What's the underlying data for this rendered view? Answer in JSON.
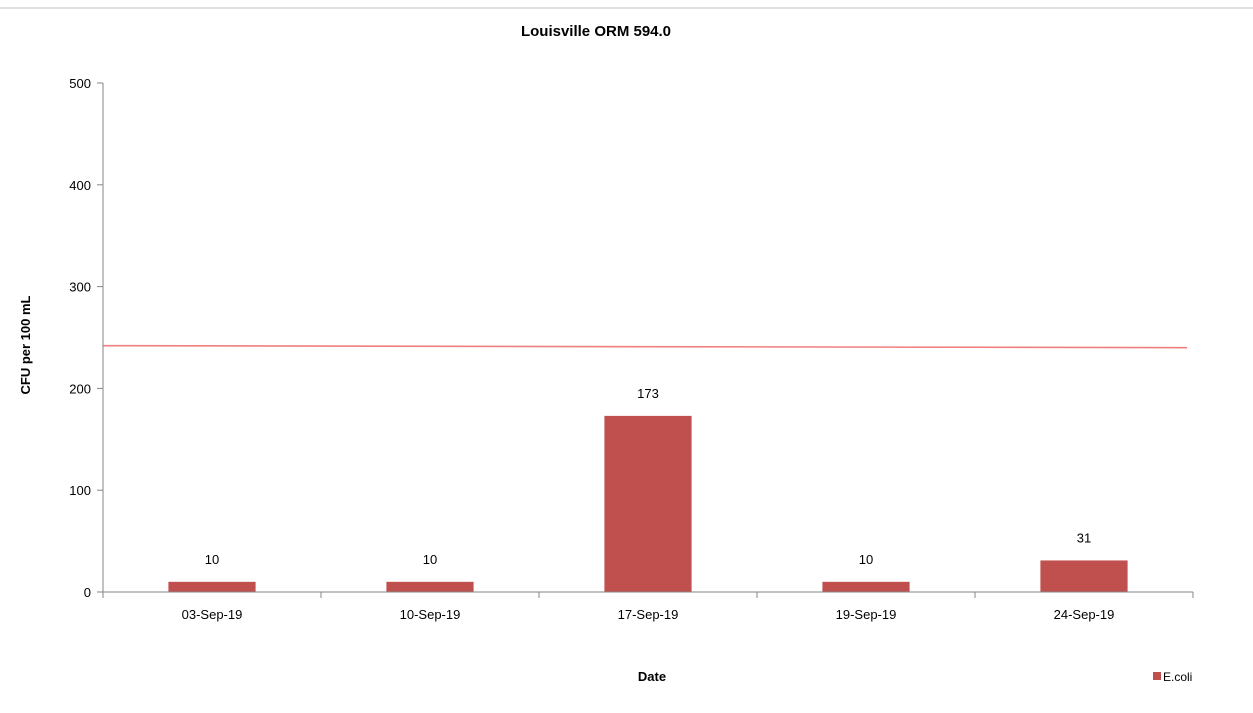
{
  "chart_data": {
    "type": "bar",
    "title": "Louisville ORM 594.0",
    "xlabel": "Date",
    "ylabel": "CFU per 100 mL",
    "categories": [
      "03-Sep-19",
      "10-Sep-19",
      "17-Sep-19",
      "19-Sep-19",
      "24-Sep-19"
    ],
    "series": [
      {
        "name": "E.coli",
        "values": [
          10,
          10,
          173,
          10,
          31
        ],
        "color": "#c0504d",
        "data_labels": [
          "10",
          "10",
          "173",
          "10",
          "31"
        ]
      }
    ],
    "reference_line": {
      "value_start": 242,
      "value_end": 240,
      "color": "#f07f7f"
    },
    "ylim": [
      0,
      500
    ],
    "yticks": [
      "0",
      "100",
      "200",
      "300",
      "400",
      "500"
    ],
    "grid": false,
    "legend": {
      "position": "bottom-right",
      "entries": [
        "E.coli"
      ]
    },
    "frame_line_color": "#bfbfbf"
  }
}
